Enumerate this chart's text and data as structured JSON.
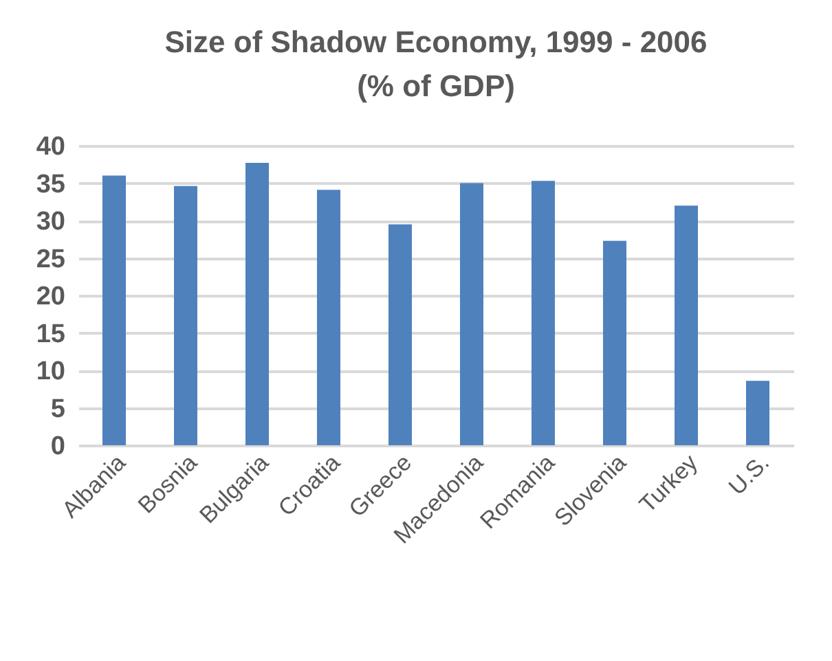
{
  "chart_data": {
    "type": "bar",
    "title": "Size of Shadow Economy, 1999 - 2006\n(% of GDP)",
    "categories": [
      "Albania",
      "Bosnia",
      "Bulgaria",
      "Croatia",
      "Greece",
      "Macedonia",
      "Romania",
      "Slovenia",
      "Turkey",
      "U.S."
    ],
    "values": [
      36.0,
      34.6,
      37.7,
      34.1,
      29.5,
      35.0,
      35.3,
      27.3,
      32.0,
      8.6
    ],
    "color": "#4f81bd",
    "ylim": [
      0,
      40
    ],
    "yticks": [
      0,
      5,
      10,
      15,
      20,
      25,
      30,
      35,
      40
    ],
    "grid": "y"
  }
}
